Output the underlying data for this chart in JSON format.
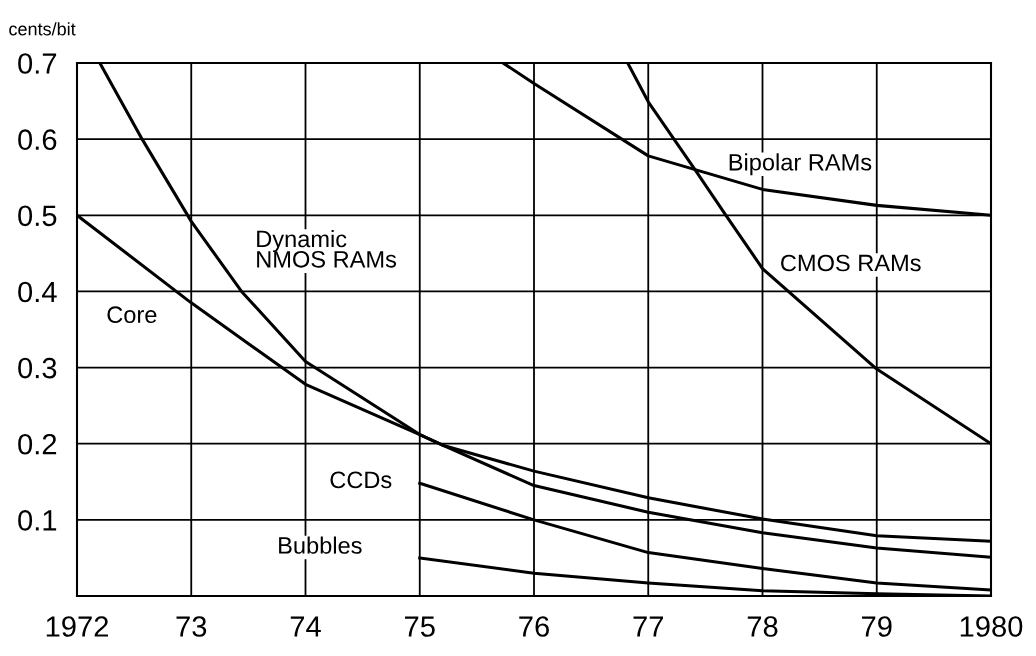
{
  "chart_data": {
    "type": "line",
    "ylabel": "cents/bit",
    "xlim": [
      1972,
      1980
    ],
    "ylim": [
      0,
      0.7
    ],
    "xticks": [
      1972,
      {
        "value": 1973,
        "label": "73"
      },
      {
        "value": 1974,
        "label": "74"
      },
      {
        "value": 1975,
        "label": "75"
      },
      {
        "value": 1976,
        "label": "76"
      },
      {
        "value": 1977,
        "label": "77"
      },
      {
        "value": 1978,
        "label": "78"
      },
      {
        "value": 1979,
        "label": "79"
      },
      1980
    ],
    "yticks": [
      {
        "value": 0,
        "label": null
      },
      0.1,
      0.2,
      0.3,
      0.4,
      0.5,
      0.6,
      0.7
    ],
    "grid": true,
    "legend": false,
    "marker": "none",
    "line_style": "solid",
    "series": [
      {
        "name": "Core",
        "color": "#000000",
        "x": [
          1972,
          1973,
          1974,
          1975,
          1975.2,
          1976,
          1977,
          1978,
          1979,
          1980
        ],
        "values": [
          0.5,
          0.385,
          0.278,
          0.212,
          0.198,
          0.164,
          0.129,
          0.101,
          0.079,
          0.072
        ]
      },
      {
        "name": "Dynamic\nNMOS RAMs",
        "color": "#000000",
        "x": [
          1972.2,
          1972.57,
          1973,
          1973.44,
          1974,
          1975,
          1975.2,
          1976,
          1977,
          1978,
          1979,
          1980
        ],
        "values": [
          0.7,
          0.6,
          0.492,
          0.4,
          0.308,
          0.212,
          0.198,
          0.145,
          0.11,
          0.083,
          0.063,
          0.051
        ]
      },
      {
        "name": "CCDs",
        "color": "#000000",
        "x": [
          1975,
          1976,
          1977,
          1978,
          1979,
          1980
        ],
        "values": [
          0.148,
          0.1,
          0.057,
          0.036,
          0.017,
          0.008
        ]
      },
      {
        "name": "Bubbles",
        "color": "#000000",
        "x": [
          1975,
          1976,
          1977,
          1978,
          1979,
          1980
        ],
        "values": [
          0.05,
          0.03,
          0.017,
          0.007,
          0.003,
          0
        ]
      },
      {
        "name": "Bipolar RAMs",
        "color": "#000000",
        "x": [
          1975.73,
          1976,
          1977,
          1978,
          1979,
          1980
        ],
        "values": [
          0.7,
          0.673,
          0.578,
          0.534,
          0.513,
          0.5
        ]
      },
      {
        "name": "CMOS RAMs",
        "color": "#000000",
        "x": [
          1976.82,
          1977,
          1977.4,
          1977.68,
          1978,
          1979,
          1980
        ],
        "values": [
          0.7,
          0.649,
          0.562,
          0.5,
          0.43,
          0.298,
          0.2
        ]
      }
    ]
  }
}
